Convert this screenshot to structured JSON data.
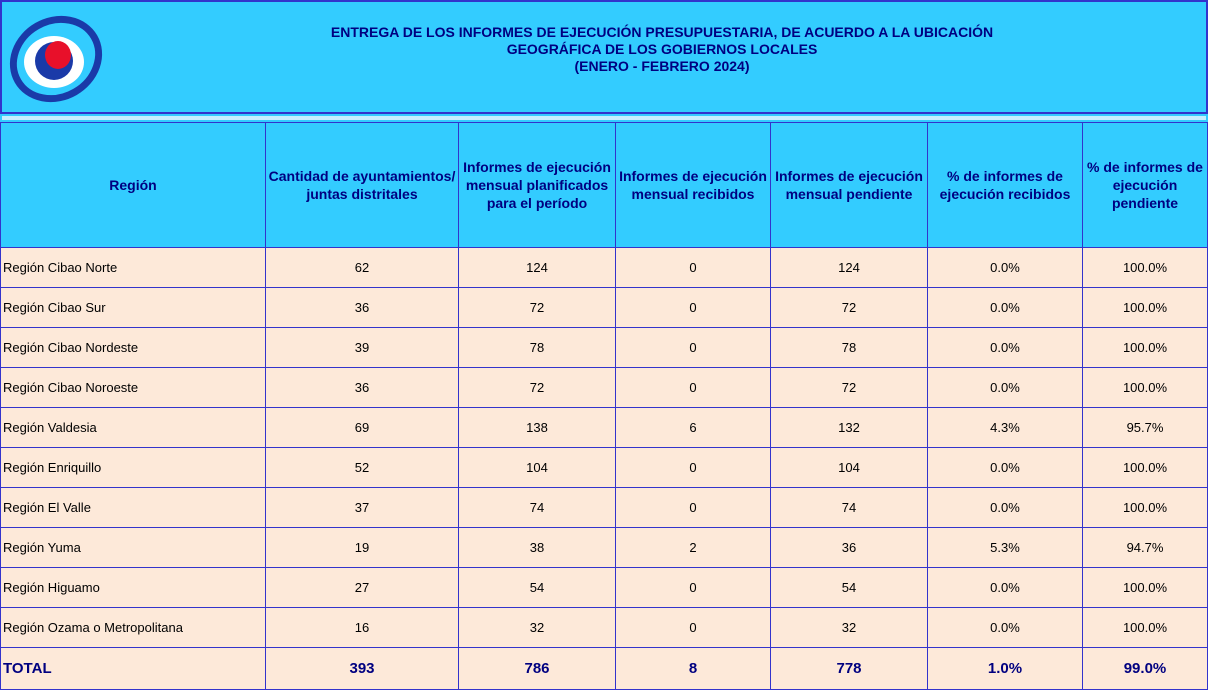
{
  "header": {
    "title_lines": [
      "ENTREGA DE LOS INFORMES DE EJECUCIÓN PRESUPUESTARIA, DE ACUERDO A LA UBICACIÓN",
      "GEOGRÁFICA DE LOS GOBIERNOS LOCALES",
      "(ENERO - FEBRERO 2024)"
    ]
  },
  "table": {
    "columns": [
      "Región",
      "Cantidad de ayuntamientos/ juntas distritales",
      "Informes de ejecución mensual planificados para el período",
      "Informes de ejecución mensual recibidos",
      "Informes de ejecución mensual pendiente",
      "% de informes de ejecución recibidos",
      "% de informes de ejecución pendiente"
    ],
    "rows": [
      [
        "Región Cibao Norte",
        "62",
        "124",
        "0",
        "124",
        "0.0%",
        "100.0%"
      ],
      [
        "Región Cibao Sur",
        "36",
        "72",
        "0",
        "72",
        "0.0%",
        "100.0%"
      ],
      [
        "Región Cibao Nordeste",
        "39",
        "78",
        "0",
        "78",
        "0.0%",
        "100.0%"
      ],
      [
        "Región Cibao Noroeste",
        "36",
        "72",
        "0",
        "72",
        "0.0%",
        "100.0%"
      ],
      [
        "Región Valdesia",
        "69",
        "138",
        "6",
        "132",
        "4.3%",
        "95.7%"
      ],
      [
        "Región Enriquillo",
        "52",
        "104",
        "0",
        "104",
        "0.0%",
        "100.0%"
      ],
      [
        "Región El Valle",
        "37",
        "74",
        "0",
        "74",
        "0.0%",
        "100.0%"
      ],
      [
        "Región Yuma",
        "19",
        "38",
        "2",
        "36",
        "5.3%",
        "94.7%"
      ],
      [
        "Región Higuamo",
        "27",
        "54",
        "0",
        "54",
        "0.0%",
        "100.0%"
      ],
      [
        "Región Ozama o Metropolitana",
        "16",
        "32",
        "0",
        "32",
        "0.0%",
        "100.0%"
      ]
    ],
    "total": [
      "TOTAL",
      "393",
      "786",
      "8",
      "778",
      "1.0%",
      "99.0%"
    ]
  }
}
